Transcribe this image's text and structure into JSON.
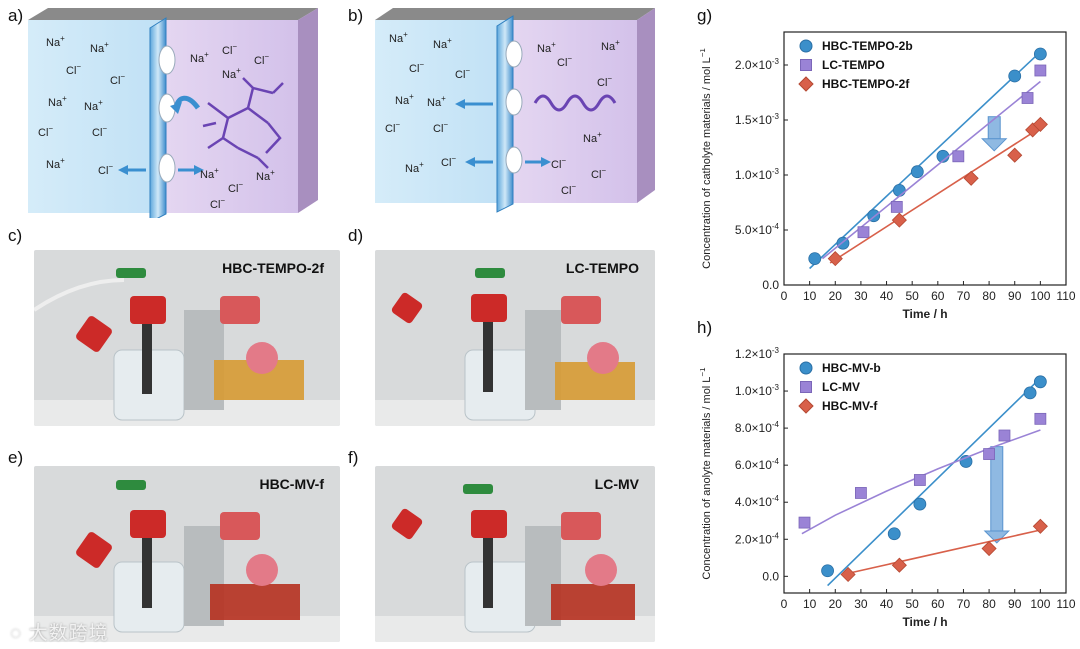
{
  "figure": {
    "panel_labels": {
      "a": "a)",
      "b": "b)",
      "c": "c)",
      "d": "d)",
      "e": "e)",
      "f": "f)",
      "g": "g)",
      "h": "h)"
    },
    "ions": {
      "na": "Na",
      "na_sup": "+",
      "cl": "Cl",
      "cl_sup": "−"
    },
    "photos": {
      "c": "HBC-TEMPO-2f",
      "d": "LC-TEMPO",
      "e": "HBC-MV-f",
      "f": "LC-MV"
    },
    "watermark": "大数跨境",
    "colors": {
      "blue": "#2f87c6",
      "purple": "#8f6fcf",
      "red": "#d2553d"
    }
  },
  "chart_data": [
    {
      "panel": "g",
      "type": "scatter",
      "xlabel": "Time / h",
      "ylabel": "Concentration of catholyte materials / mol L",
      "ylabel_sup": "−1",
      "xlim": [
        0,
        110
      ],
      "ylim": [
        0,
        0.0023
      ],
      "xticks": [
        "0",
        "10",
        "20",
        "30",
        "40",
        "50",
        "60",
        "70",
        "80",
        "90",
        "100",
        "110"
      ],
      "yticks": [
        {
          "v": 0,
          "label": "0.0"
        },
        {
          "v": 0.0005,
          "label": "5.0×10",
          "exp": "-4"
        },
        {
          "v": 0.001,
          "label": "1.0×10",
          "exp": "-3"
        },
        {
          "v": 0.0015,
          "label": "1.5×10",
          "exp": "-3"
        },
        {
          "v": 0.002,
          "label": "2.0×10",
          "exp": "-3"
        }
      ],
      "series": [
        {
          "name": "HBC-TEMPO-2b",
          "marker": "circle",
          "color": "#3b8fca",
          "x": [
            12,
            23,
            35,
            45,
            52,
            62,
            90,
            100
          ],
          "y": [
            0.00024,
            0.00038,
            0.00063,
            0.00086,
            0.00103,
            0.00117,
            0.0019,
            0.0021
          ],
          "fit": [
            [
              10,
              0.00015
            ],
            [
              100,
              0.00212
            ]
          ]
        },
        {
          "name": "LC-TEMPO",
          "marker": "square",
          "color": "#9a83d6",
          "x": [
            31,
            44,
            68,
            95,
            100
          ],
          "y": [
            0.00048,
            0.00071,
            0.00117,
            0.0017,
            0.00195
          ],
          "fit": [
            [
              15,
              0.00024
            ],
            [
              100,
              0.00185
            ]
          ]
        },
        {
          "name": "HBC-TEMPO-2f",
          "marker": "diamond",
          "color": "#d8604a",
          "x": [
            20,
            45,
            73,
            90,
            97,
            100
          ],
          "y": [
            0.00024,
            0.00059,
            0.00097,
            0.00118,
            0.00141,
            0.00146
          ],
          "fit": [
            [
              18,
              0.0002
            ],
            [
              100,
              0.00143
            ]
          ]
        }
      ],
      "arrow": {
        "x": 82,
        "y_from": 0.00153,
        "y_to": 0.00122
      }
    },
    {
      "panel": "h",
      "type": "scatter",
      "xlabel": "Time / h",
      "ylabel": "Concentration of anolyte materials / mol L",
      "ylabel_sup": "−1",
      "xlim": [
        0,
        110
      ],
      "ylim": [
        -9e-05,
        0.0012
      ],
      "xticks": [
        "0",
        "10",
        "20",
        "30",
        "40",
        "50",
        "60",
        "70",
        "80",
        "90",
        "100",
        "110"
      ],
      "yticks": [
        {
          "v": 0,
          "label": "0.0"
        },
        {
          "v": 0.0002,
          "label": "2.0×10",
          "exp": "-4"
        },
        {
          "v": 0.0004,
          "label": "4.0×10",
          "exp": "-4"
        },
        {
          "v": 0.0006,
          "label": "6.0×10",
          "exp": "-4"
        },
        {
          "v": 0.0008,
          "label": "8.0×10",
          "exp": "-4"
        },
        {
          "v": 0.001,
          "label": "1.0×10",
          "exp": "-3"
        },
        {
          "v": 0.0012,
          "label": "1.2×10",
          "exp": "-3"
        }
      ],
      "series": [
        {
          "name": "HBC-MV-b",
          "marker": "circle",
          "color": "#3b8fca",
          "x": [
            17,
            43,
            53,
            71,
            96,
            100
          ],
          "y": [
            3e-05,
            0.00023,
            0.00039,
            0.00062,
            0.00099,
            0.00105
          ],
          "fit": [
            [
              17,
              -5e-05
            ],
            [
              100,
              0.00107
            ]
          ]
        },
        {
          "name": "LC-MV",
          "marker": "square",
          "color": "#9a83d6",
          "x": [
            8,
            30,
            53,
            80,
            86,
            100
          ],
          "y": [
            0.00029,
            0.00045,
            0.00052,
            0.00066,
            0.00076,
            0.00085
          ],
          "fit_curve": [
            [
              7,
              0.00023
            ],
            [
              20,
              0.00033
            ],
            [
              40,
              0.00046
            ],
            [
              60,
              0.00058
            ],
            [
              80,
              0.00069
            ],
            [
              100,
              0.00079
            ]
          ]
        },
        {
          "name": "HBC-MV-f",
          "marker": "diamond",
          "color": "#d8604a",
          "x": [
            25,
            45,
            80,
            100
          ],
          "y": [
            1e-05,
            6e-05,
            0.00015,
            0.00027
          ],
          "fit": [
            [
              23,
              1e-05
            ],
            [
              100,
              0.00025
            ]
          ]
        }
      ],
      "arrow": {
        "x": 83,
        "y_from": 0.0007,
        "y_to": 0.00018
      }
    }
  ]
}
